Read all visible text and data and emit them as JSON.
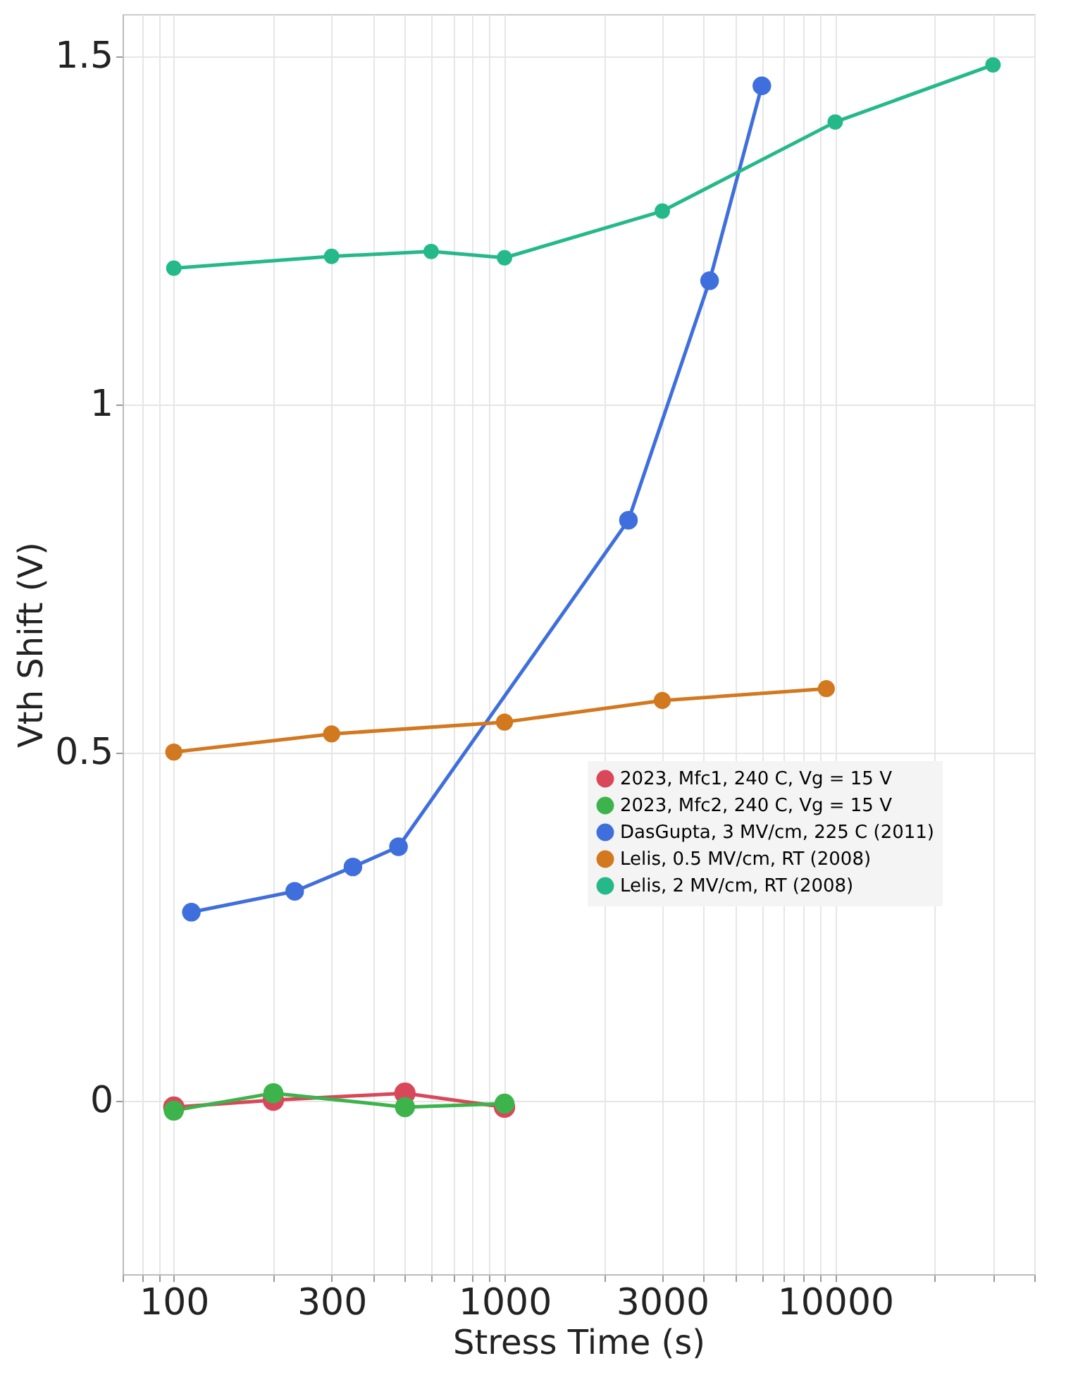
{
  "chart_data": {
    "type": "line",
    "xlabel": "Stress Time (s)",
    "ylabel": "Vth Shift (V)",
    "log": "x",
    "grid": true,
    "legend": "right",
    "marker": "circle",
    "line_style": "solid",
    "xlim": [
      70,
      40000
    ],
    "ylim": [
      -0.25,
      1.56
    ],
    "xticks": [
      {
        "value": 70,
        "label": null
      },
      {
        "value": 80,
        "label": null
      },
      {
        "value": 90,
        "label": null
      },
      100,
      {
        "value": 200,
        "label": null
      },
      300,
      {
        "value": 400,
        "label": null
      },
      {
        "value": 500,
        "label": null
      },
      {
        "value": 600,
        "label": null
      },
      {
        "value": 700,
        "label": null
      },
      {
        "value": 800,
        "label": null
      },
      {
        "value": 900,
        "label": null
      },
      1000,
      {
        "value": 2000,
        "label": null
      },
      3000,
      {
        "value": 4000,
        "label": null
      },
      {
        "value": 5000,
        "label": null
      },
      {
        "value": 6000,
        "label": null
      },
      {
        "value": 7000,
        "label": null
      },
      {
        "value": 8000,
        "label": null
      },
      {
        "value": 9000,
        "label": null
      },
      10000,
      {
        "value": 20000,
        "label": null
      },
      {
        "value": 30000,
        "label": null
      },
      {
        "value": 40000,
        "label": null
      }
    ],
    "yticks": [
      0,
      0.5,
      1,
      1.5
    ],
    "series": [
      {
        "name": "2023, Mfc1, 240 C, Vg = 15 V",
        "color": "#d9475a",
        "x": [
          100,
          200,
          500,
          1000
        ],
        "values": [
          -0.01,
          0.0,
          0.01,
          -0.01
        ]
      },
      {
        "name": "2023, Mfc2, 240 C, Vg = 15 V",
        "color": "#3cb44b",
        "x": [
          100,
          200,
          500,
          1000
        ],
        "values": [
          -0.015,
          0.01,
          -0.01,
          -0.005
        ]
      },
      {
        "name": "DasGupta, 3 MV/cm, 225 C (2011)",
        "color": "#3f6fdc",
        "x": [
          113,
          232,
          348,
          478,
          2370,
          4170,
          6000
        ],
        "values": [
          0.27,
          0.3,
          0.335,
          0.364,
          0.833,
          1.177,
          1.457
        ]
      },
      {
        "name": "Lelis, 0.5 MV/cm, RT (2008)",
        "color": "#d2781e",
        "x": [
          100,
          300,
          1000,
          3000,
          9400
        ],
        "values": [
          0.5,
          0.526,
          0.543,
          0.574,
          0.591
        ]
      },
      {
        "name": "Lelis, 2 MV/cm, RT (2008)",
        "color": "#25b98a",
        "x": [
          100,
          300,
          600,
          1000,
          3000,
          10000,
          30000
        ],
        "values": [
          1.195,
          1.212,
          1.219,
          1.21,
          1.277,
          1.405,
          1.487
        ]
      }
    ]
  }
}
